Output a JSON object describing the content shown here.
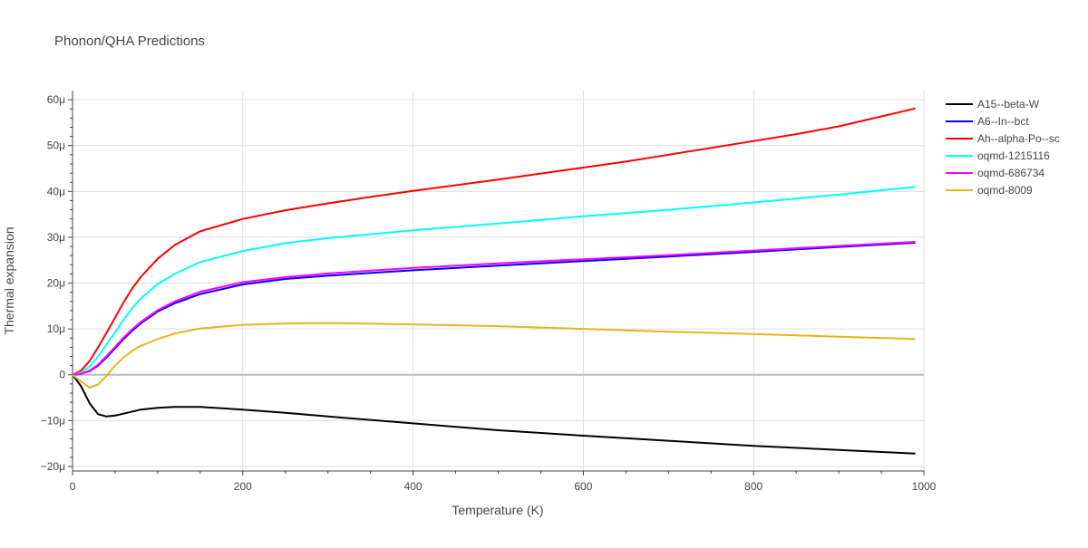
{
  "chart_data": {
    "type": "line",
    "title": "Phonon/QHA Predictions",
    "xlabel": "Temperature (K)",
    "ylabel": "Thermal expansion",
    "xlim": [
      0,
      1000
    ],
    "ylim": [
      -21,
      62
    ],
    "x_ticks": [
      0,
      200,
      400,
      600,
      800,
      1000
    ],
    "x_tick_labels": [
      "0",
      "200",
      "400",
      "600",
      "800",
      "1000"
    ],
    "y_ticks": [
      -20,
      -10,
      0,
      10,
      20,
      30,
      40,
      50,
      60
    ],
    "y_tick_labels": [
      "−20μ",
      "−10μ",
      "0",
      "10μ",
      "20μ",
      "30μ",
      "40μ",
      "50μ",
      "60μ"
    ],
    "grid": true,
    "legend_position": "top-right",
    "series": [
      {
        "name": "A15--beta-W",
        "color": "#000000",
        "x": [
          0,
          10,
          20,
          30,
          40,
          50,
          60,
          80,
          100,
          120,
          150,
          200,
          250,
          300,
          400,
          500,
          600,
          700,
          800,
          900,
          990
        ],
        "y": [
          0,
          -2.5,
          -6.2,
          -8.6,
          -9.1,
          -8.9,
          -8.5,
          -7.6,
          -7.2,
          -7.0,
          -7.0,
          -7.6,
          -8.3,
          -9.1,
          -10.6,
          -12.1,
          -13.3,
          -14.4,
          -15.5,
          -16.4,
          -17.2
        ]
      },
      {
        "name": "A6--In--bct",
        "color": "#0000ff",
        "x": [
          0,
          10,
          20,
          30,
          40,
          50,
          60,
          70,
          80,
          100,
          120,
          150,
          200,
          250,
          300,
          400,
          500,
          600,
          700,
          800,
          900,
          990
        ],
        "y": [
          0,
          0.2,
          0.8,
          2.0,
          3.8,
          5.8,
          7.8,
          9.6,
          11.2,
          13.8,
          15.6,
          17.6,
          19.7,
          20.9,
          21.6,
          22.8,
          23.8,
          24.8,
          25.8,
          26.8,
          27.9,
          28.8
        ]
      },
      {
        "name": "Ah--alpha-Po--sc",
        "color": "#ff0000",
        "x": [
          0,
          10,
          20,
          30,
          40,
          50,
          60,
          70,
          80,
          100,
          120,
          150,
          200,
          250,
          300,
          350,
          400,
          500,
          600,
          650,
          700,
          800,
          850,
          900,
          990
        ],
        "y": [
          0,
          0.9,
          3.0,
          6.0,
          9.2,
          12.5,
          15.8,
          18.8,
          21.3,
          25.3,
          28.3,
          31.3,
          34.0,
          35.9,
          37.4,
          38.8,
          40.1,
          42.6,
          45.2,
          46.5,
          48.0,
          51.0,
          52.5,
          54.2,
          58.1
        ]
      },
      {
        "name": "oqmd-1215116",
        "color": "#00ffff",
        "x": [
          0,
          10,
          20,
          30,
          40,
          50,
          60,
          70,
          80,
          100,
          120,
          150,
          200,
          250,
          300,
          400,
          500,
          600,
          700,
          800,
          900,
          990
        ],
        "y": [
          0,
          0.5,
          1.8,
          4.0,
          6.6,
          9.3,
          12.0,
          14.5,
          16.6,
          19.8,
          22.0,
          24.6,
          27.0,
          28.7,
          29.8,
          31.5,
          33.0,
          34.6,
          36.0,
          37.6,
          39.3,
          41.0
        ]
      },
      {
        "name": "oqmd-686734",
        "color": "#ff00ff",
        "x": [
          0,
          10,
          20,
          30,
          40,
          50,
          60,
          70,
          80,
          100,
          120,
          150,
          200,
          250,
          300,
          400,
          500,
          600,
          700,
          800,
          900,
          990
        ],
        "y": [
          0,
          0.2,
          0.9,
          2.2,
          4.1,
          6.1,
          8.1,
          9.9,
          11.5,
          14.1,
          16.0,
          18.1,
          20.2,
          21.3,
          22.1,
          23.3,
          24.3,
          25.2,
          26.1,
          27.1,
          28.1,
          29.0
        ]
      },
      {
        "name": "oqmd-8009",
        "color": "#e6b41a",
        "x": [
          0,
          10,
          20,
          30,
          40,
          50,
          60,
          70,
          80,
          100,
          120,
          150,
          200,
          250,
          300,
          400,
          500,
          600,
          700,
          800,
          900,
          990
        ],
        "y": [
          0,
          -1.5,
          -2.8,
          -2.1,
          -0.2,
          2.0,
          3.8,
          5.2,
          6.3,
          7.8,
          9.0,
          10.1,
          10.9,
          11.2,
          11.3,
          11.0,
          10.6,
          10.0,
          9.4,
          8.9,
          8.3,
          7.8
        ]
      }
    ]
  }
}
